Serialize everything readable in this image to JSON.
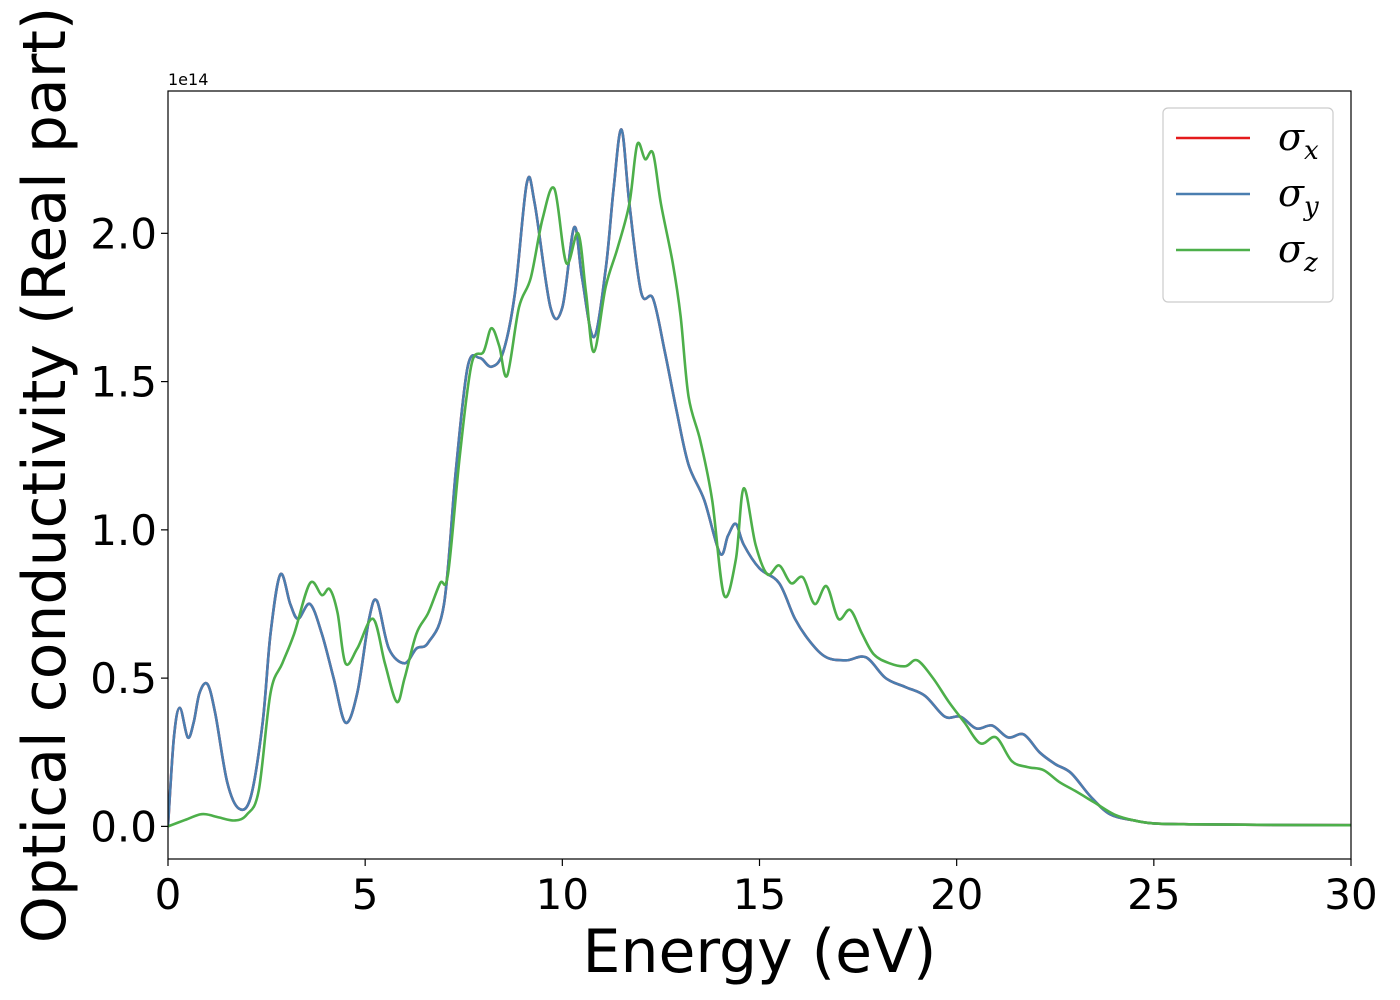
{
  "chart_data": {
    "type": "line",
    "xlabel": "Energy (eV)",
    "ylabel": "Optical conductivity (Real part)",
    "y_offset_text": "1e14",
    "y_multiplier": 100000000000000.0,
    "xlim": [
      0,
      30
    ],
    "ylim": [
      -0.11,
      2.48
    ],
    "x_ticks": [
      0,
      5,
      10,
      15,
      20,
      25,
      30
    ],
    "x_tick_labels": [
      "0",
      "5",
      "10",
      "15",
      "20",
      "25",
      "30"
    ],
    "y_ticks": [
      0.0,
      0.5,
      1.0,
      1.5,
      2.0
    ],
    "y_tick_labels": [
      "0.0",
      "0.5",
      "1.0",
      "1.5",
      "2.0"
    ],
    "grid": false,
    "legend_position": "top-right",
    "series": [
      {
        "name": "σx",
        "label_base": "σ",
        "label_sub": "x",
        "color": "#e41a1c",
        "x": [
          0.0,
          0.15,
          0.3,
          0.5,
          0.65,
          0.8,
          1.0,
          1.2,
          1.5,
          1.8,
          2.1,
          2.4,
          2.6,
          2.85,
          3.1,
          3.3,
          3.6,
          3.9,
          4.2,
          4.5,
          4.8,
          5.1,
          5.3,
          5.6,
          6.0,
          6.3,
          6.6,
          7.0,
          7.3,
          7.6,
          7.9,
          8.2,
          8.5,
          8.8,
          9.1,
          9.3,
          9.7,
          10.0,
          10.3,
          10.5,
          10.8,
          11.1,
          11.3,
          11.5,
          11.7,
          12.0,
          12.3,
          12.6,
          12.9,
          13.2,
          13.6,
          14.0,
          14.2,
          14.4,
          14.6,
          15.0,
          15.5,
          15.9,
          16.3,
          16.7,
          17.2,
          17.7,
          18.2,
          18.7,
          19.2,
          19.7,
          20.1,
          20.5,
          20.9,
          21.3,
          21.7,
          22.1,
          22.5,
          22.9,
          23.4,
          23.9,
          24.5,
          25.0,
          26.0,
          28.0,
          30.0
        ],
        "values": [
          0.0,
          0.3,
          0.4,
          0.3,
          0.35,
          0.45,
          0.48,
          0.38,
          0.15,
          0.06,
          0.1,
          0.35,
          0.65,
          0.85,
          0.75,
          0.7,
          0.75,
          0.65,
          0.5,
          0.35,
          0.45,
          0.7,
          0.76,
          0.6,
          0.55,
          0.6,
          0.62,
          0.75,
          1.2,
          1.55,
          1.58,
          1.55,
          1.6,
          1.8,
          2.17,
          2.1,
          1.75,
          1.75,
          2.02,
          1.85,
          1.65,
          1.88,
          2.15,
          2.35,
          2.1,
          1.8,
          1.78,
          1.6,
          1.4,
          1.22,
          1.1,
          0.92,
          0.98,
          1.02,
          0.95,
          0.87,
          0.82,
          0.7,
          0.62,
          0.57,
          0.56,
          0.57,
          0.5,
          0.47,
          0.44,
          0.37,
          0.37,
          0.33,
          0.34,
          0.3,
          0.31,
          0.25,
          0.21,
          0.18,
          0.1,
          0.04,
          0.02,
          0.01,
          0.007,
          0.005,
          0.004
        ]
      },
      {
        "name": "σy",
        "label_base": "σ",
        "label_sub": "y",
        "color": "#4a7eb0",
        "x": [
          0.0,
          0.15,
          0.3,
          0.5,
          0.65,
          0.8,
          1.0,
          1.2,
          1.5,
          1.8,
          2.1,
          2.4,
          2.6,
          2.85,
          3.1,
          3.3,
          3.6,
          3.9,
          4.2,
          4.5,
          4.8,
          5.1,
          5.3,
          5.6,
          6.0,
          6.3,
          6.6,
          7.0,
          7.3,
          7.6,
          7.9,
          8.2,
          8.5,
          8.8,
          9.1,
          9.3,
          9.7,
          10.0,
          10.3,
          10.5,
          10.8,
          11.1,
          11.3,
          11.5,
          11.7,
          12.0,
          12.3,
          12.6,
          12.9,
          13.2,
          13.6,
          14.0,
          14.2,
          14.4,
          14.6,
          15.0,
          15.5,
          15.9,
          16.3,
          16.7,
          17.2,
          17.7,
          18.2,
          18.7,
          19.2,
          19.7,
          20.1,
          20.5,
          20.9,
          21.3,
          21.7,
          22.1,
          22.5,
          22.9,
          23.4,
          23.9,
          24.5,
          25.0,
          26.0,
          28.0,
          30.0
        ],
        "values": [
          0.0,
          0.3,
          0.4,
          0.3,
          0.35,
          0.45,
          0.48,
          0.38,
          0.15,
          0.06,
          0.1,
          0.35,
          0.65,
          0.85,
          0.75,
          0.7,
          0.75,
          0.65,
          0.5,
          0.35,
          0.45,
          0.7,
          0.76,
          0.6,
          0.55,
          0.6,
          0.62,
          0.75,
          1.2,
          1.55,
          1.58,
          1.55,
          1.6,
          1.8,
          2.17,
          2.1,
          1.75,
          1.75,
          2.02,
          1.85,
          1.65,
          1.88,
          2.15,
          2.35,
          2.1,
          1.8,
          1.78,
          1.6,
          1.4,
          1.22,
          1.1,
          0.92,
          0.98,
          1.02,
          0.95,
          0.87,
          0.82,
          0.7,
          0.62,
          0.57,
          0.56,
          0.57,
          0.5,
          0.47,
          0.44,
          0.37,
          0.37,
          0.33,
          0.34,
          0.3,
          0.31,
          0.25,
          0.21,
          0.18,
          0.1,
          0.04,
          0.02,
          0.01,
          0.007,
          0.005,
          0.004
        ]
      },
      {
        "name": "σz",
        "label_base": "σ",
        "label_sub": "z",
        "color": "#4daf4a",
        "x": [
          0.0,
          0.4,
          0.8,
          1.0,
          1.3,
          1.7,
          2.0,
          2.3,
          2.6,
          2.9,
          3.2,
          3.6,
          3.9,
          4.1,
          4.3,
          4.5,
          4.8,
          5.2,
          5.5,
          5.8,
          6.0,
          6.3,
          6.6,
          6.9,
          7.1,
          7.4,
          7.7,
          8.0,
          8.2,
          8.4,
          8.6,
          8.9,
          9.2,
          9.5,
          9.8,
          10.1,
          10.4,
          10.6,
          10.8,
          11.1,
          11.4,
          11.7,
          11.9,
          12.1,
          12.3,
          12.5,
          12.8,
          13.0,
          13.2,
          13.5,
          13.8,
          14.1,
          14.4,
          14.6,
          14.9,
          15.2,
          15.5,
          15.8,
          16.1,
          16.4,
          16.7,
          17.0,
          17.3,
          17.6,
          17.9,
          18.3,
          18.7,
          19.0,
          19.4,
          19.8,
          20.2,
          20.6,
          21.0,
          21.4,
          21.8,
          22.2,
          22.6,
          23.0,
          23.5,
          24.0,
          24.5,
          25.0,
          26.0,
          28.0,
          30.0
        ],
        "values": [
          0.0,
          0.02,
          0.04,
          0.04,
          0.03,
          0.02,
          0.04,
          0.12,
          0.45,
          0.55,
          0.65,
          0.82,
          0.78,
          0.8,
          0.72,
          0.55,
          0.6,
          0.7,
          0.55,
          0.42,
          0.5,
          0.65,
          0.72,
          0.82,
          0.85,
          1.25,
          1.56,
          1.6,
          1.68,
          1.62,
          1.52,
          1.75,
          1.85,
          2.05,
          2.15,
          1.9,
          2.0,
          1.8,
          1.6,
          1.82,
          1.95,
          2.1,
          2.3,
          2.25,
          2.27,
          2.1,
          1.9,
          1.72,
          1.45,
          1.3,
          1.1,
          0.78,
          0.9,
          1.14,
          0.95,
          0.85,
          0.88,
          0.82,
          0.84,
          0.75,
          0.81,
          0.7,
          0.73,
          0.65,
          0.58,
          0.55,
          0.54,
          0.56,
          0.5,
          0.42,
          0.35,
          0.28,
          0.3,
          0.22,
          0.2,
          0.19,
          0.15,
          0.12,
          0.08,
          0.04,
          0.02,
          0.01,
          0.007,
          0.005,
          0.004
        ]
      }
    ]
  }
}
